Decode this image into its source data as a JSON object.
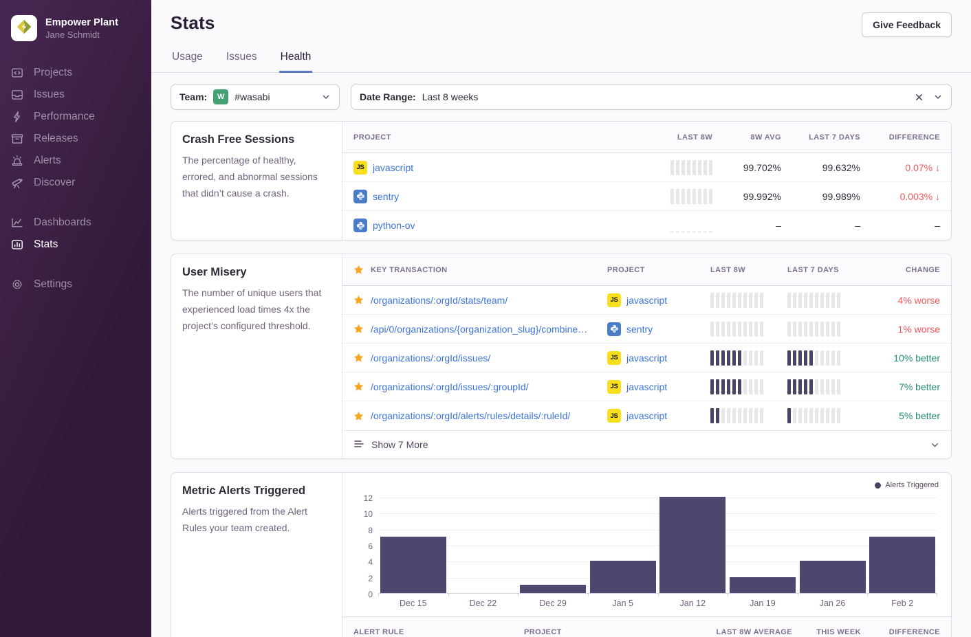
{
  "sidebar": {
    "org_name": "Empower Plant",
    "user_name": "Jane Schmidt",
    "primary_items": [
      {
        "label": "Projects",
        "icon": "projects"
      },
      {
        "label": "Issues",
        "icon": "issues"
      },
      {
        "label": "Performance",
        "icon": "performance"
      },
      {
        "label": "Releases",
        "icon": "releases"
      },
      {
        "label": "Alerts",
        "icon": "alerts"
      },
      {
        "label": "Discover",
        "icon": "discover"
      }
    ],
    "secondary_items": [
      {
        "label": "Dashboards",
        "icon": "dashboards"
      },
      {
        "label": "Stats",
        "icon": "stats",
        "active": true
      }
    ],
    "footer_items": [
      {
        "label": "Settings",
        "icon": "settings"
      }
    ]
  },
  "header": {
    "title": "Stats",
    "feedback_button": "Give Feedback"
  },
  "tabs": [
    {
      "label": "Usage"
    },
    {
      "label": "Issues"
    },
    {
      "label": "Health",
      "active": true
    }
  ],
  "filters": {
    "team_label": "Team:",
    "team_avatar_letter": "W",
    "team_value": "#wasabi",
    "date_label": "Date Range:",
    "date_value": "Last 8 weeks"
  },
  "crash_free": {
    "title": "Crash Free Sessions",
    "description": "The percentage of healthy, errored, and abnormal sessions that didn’t cause a crash.",
    "columns": [
      "PROJECT",
      "LAST 8W",
      "8W AVG",
      "LAST 7 DAYS",
      "DIFFERENCE"
    ],
    "rows": [
      {
        "project": "javascript",
        "platform": "js",
        "spark": [
          0,
          0,
          0,
          0,
          0,
          0,
          0,
          0
        ],
        "avg": "99.702%",
        "last7": "99.632%",
        "diff": "0.07%",
        "diff_arrow": "↓"
      },
      {
        "project": "sentry",
        "platform": "python",
        "spark": [
          0,
          0,
          0,
          0,
          0,
          0,
          0,
          0
        ],
        "avg": "99.992%",
        "last7": "99.989%",
        "diff": "0.003%",
        "diff_arrow": "↓"
      },
      {
        "project": "python-ov",
        "platform": "python",
        "spark": "muted",
        "avg": "–",
        "last7": "–",
        "diff": "–",
        "diff_arrow": ""
      }
    ]
  },
  "user_misery": {
    "title": "User Misery",
    "description": "The number of unique users that experienced load times 4x the project’s configured threshold.",
    "columns": [
      "KEY TRANSACTION",
      "PROJECT",
      "LAST 8W",
      "LAST 7 DAYS",
      "CHANGE"
    ],
    "rows": [
      {
        "transaction": "/organizations/:orgId/stats/team/",
        "project": "javascript",
        "platform": "js",
        "spark8w": [
          0,
          0,
          0,
          0,
          0,
          0,
          0,
          0,
          0,
          0
        ],
        "spark7d": [
          0,
          0,
          0,
          0,
          0,
          0,
          0,
          0,
          0,
          0
        ],
        "change": "4% worse",
        "trend": "worse"
      },
      {
        "transaction": "/api/0/organizations/{organization_slug}/combine…",
        "project": "sentry",
        "platform": "python",
        "spark8w": [
          0,
          0,
          0,
          0,
          0,
          0,
          0,
          0,
          0,
          0
        ],
        "spark7d": [
          0,
          0,
          0,
          0,
          0,
          0,
          0,
          0,
          0,
          0
        ],
        "change": "1% worse",
        "trend": "worse"
      },
      {
        "transaction": "/organizations/:orgId/issues/",
        "project": "javascript",
        "platform": "js",
        "spark8w": [
          1,
          1,
          1,
          1,
          1,
          1,
          0,
          0,
          0,
          0
        ],
        "spark7d": [
          1,
          1,
          1,
          1,
          1,
          0,
          0,
          0,
          0,
          0
        ],
        "change": "10% better",
        "trend": "better"
      },
      {
        "transaction": "/organizations/:orgId/issues/:groupId/",
        "project": "javascript",
        "platform": "js",
        "spark8w": [
          1,
          1,
          1,
          1,
          1,
          1,
          0,
          0,
          0,
          0
        ],
        "spark7d": [
          1,
          1,
          1,
          1,
          1,
          0,
          0,
          0,
          0,
          0
        ],
        "change": "7% better",
        "trend": "better"
      },
      {
        "transaction": "/organizations/:orgId/alerts/rules/details/:ruleId/",
        "project": "javascript",
        "platform": "js",
        "spark8w": [
          1,
          1,
          0,
          0,
          0,
          0,
          0,
          0,
          0,
          0
        ],
        "spark7d": [
          1,
          0,
          0,
          0,
          0,
          0,
          0,
          0,
          0,
          0
        ],
        "change": "5% better",
        "trend": "better"
      }
    ],
    "show_more": "Show 7 More"
  },
  "metric_alerts": {
    "title": "Metric Alerts Triggered",
    "description": "Alerts triggered from the Alert Rules your team created.",
    "chart_data": {
      "type": "bar",
      "categories": [
        "Dec 15",
        "Dec 22",
        "Dec 29",
        "Jan 5",
        "Jan 12",
        "Jan 19",
        "Jan 26",
        "Feb 2"
      ],
      "values": [
        7,
        0,
        1,
        4,
        12,
        2,
        4,
        7
      ],
      "title": "Metric Alerts Triggered",
      "xlabel": "",
      "ylabel": "",
      "ylim": [
        0,
        12
      ],
      "ytick_step": 2,
      "grid": true,
      "legend": [
        "Alerts Triggered"
      ],
      "legend_position": "top-right",
      "bar_color": "#4d4770"
    },
    "table_columns": [
      "ALERT RULE",
      "PROJECT",
      "LAST 8W AVERAGE",
      "THIS WEEK",
      "DIFFERENCE"
    ]
  },
  "colors": {
    "link_blue": "#3d74db",
    "negative_red": "#f55459",
    "positive_green": "#268d75",
    "bar_dark": "#4a4368",
    "bar_light": "#e8e6ed",
    "star_gold": "#f5a623",
    "team_avatar_green": "#44a173",
    "tab_underline_blue": "#5a7bc4",
    "sidebar_purple": "#2f1937"
  }
}
